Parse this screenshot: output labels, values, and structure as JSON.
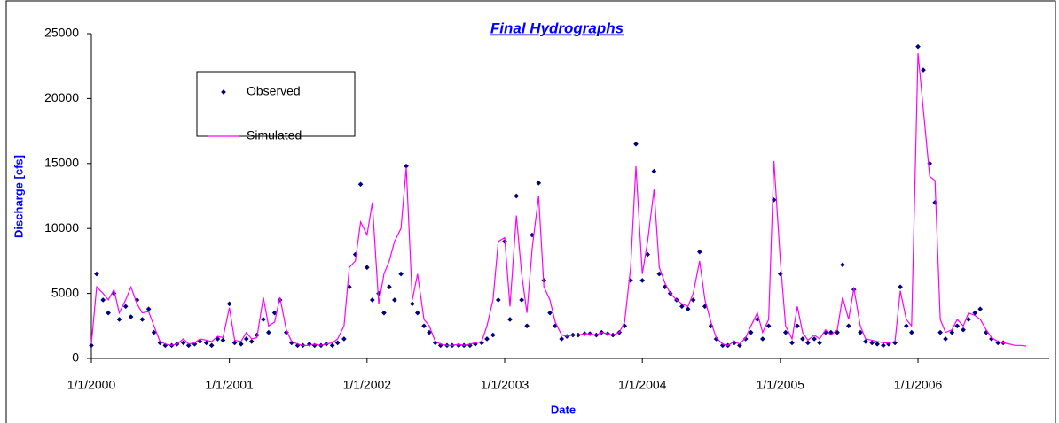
{
  "chart_data": {
    "type": "line",
    "title": "Final Hydrographs",
    "x_label": "Date",
    "y_label": "Discharge [cfs]",
    "legend": "upper left",
    "x": [
      "1/1/2000",
      "1/15/2000",
      "2/1/2000",
      "2/15/2000",
      "3/1/2000",
      "3/15/2000",
      "4/1/2000",
      "4/15/2000",
      "5/1/2000",
      "5/15/2000",
      "6/1/2000",
      "6/15/2000",
      "7/1/2000",
      "7/15/2000",
      "8/1/2000",
      "8/15/2000",
      "9/1/2000",
      "9/15/2000",
      "10/1/2000",
      "10/15/2000",
      "11/1/2000",
      "11/15/2000",
      "12/1/2000",
      "12/15/2000",
      "1/1/2001",
      "1/15/2001",
      "2/1/2001",
      "2/15/2001",
      "3/1/2001",
      "3/15/2001",
      "4/1/2001",
      "4/15/2001",
      "5/1/2001",
      "5/15/2001",
      "6/1/2001",
      "6/15/2001",
      "7/1/2001",
      "7/15/2001",
      "8/1/2001",
      "8/15/2001",
      "9/1/2001",
      "9/15/2001",
      "10/1/2001",
      "10/15/2001",
      "11/1/2001",
      "11/15/2001",
      "12/1/2001",
      "12/15/2001",
      "1/1/2002",
      "1/15/2002",
      "2/1/2002",
      "2/15/2002",
      "3/1/2002",
      "3/15/2002",
      "4/1/2002",
      "4/15/2002",
      "5/1/2002",
      "5/15/2002",
      "6/1/2002",
      "6/15/2002",
      "7/1/2002",
      "7/15/2002",
      "8/1/2002",
      "8/15/2002",
      "9/1/2002",
      "9/15/2002",
      "10/1/2002",
      "10/15/2002",
      "11/1/2002",
      "11/15/2002",
      "12/1/2002",
      "12/15/2002",
      "1/1/2003",
      "1/15/2003",
      "2/1/2003",
      "2/15/2003",
      "3/1/2003",
      "3/15/2003",
      "4/1/2003",
      "4/15/2003",
      "5/1/2003",
      "5/15/2003",
      "6/1/2003",
      "6/15/2003",
      "7/1/2003",
      "7/15/2003",
      "8/1/2003",
      "8/15/2003",
      "9/1/2003",
      "9/15/2003",
      "10/1/2003",
      "10/15/2003",
      "11/1/2003",
      "11/15/2003",
      "12/1/2003",
      "12/15/2003",
      "1/1/2004",
      "1/15/2004",
      "2/1/2004",
      "2/15/2004",
      "3/1/2004",
      "3/15/2004",
      "4/1/2004",
      "4/15/2004",
      "5/1/2004",
      "5/15/2004",
      "6/1/2004",
      "6/15/2004",
      "7/1/2004",
      "7/15/2004",
      "8/1/2004",
      "8/15/2004",
      "9/1/2004",
      "9/15/2004",
      "10/1/2004",
      "10/15/2004",
      "11/1/2004",
      "11/15/2004",
      "12/1/2004",
      "12/15/2004",
      "1/1/2005",
      "1/15/2005",
      "2/1/2005",
      "2/15/2005",
      "3/1/2005",
      "3/15/2005",
      "4/1/2005",
      "4/15/2005",
      "5/1/2005",
      "5/15/2005",
      "6/1/2005",
      "6/15/2005",
      "7/1/2005",
      "7/15/2005",
      "8/1/2005",
      "8/15/2005",
      "9/1/2005",
      "9/15/2005",
      "10/1/2005",
      "10/15/2005",
      "11/1/2005",
      "11/15/2005",
      "12/1/2005",
      "12/15/2005",
      "1/1/2006",
      "1/15/2006",
      "2/1/2006",
      "2/15/2006",
      "3/1/2006",
      "3/15/2006",
      "4/1/2006",
      "4/15/2006",
      "5/1/2006",
      "5/15/2006",
      "6/1/2006",
      "6/15/2006",
      "7/1/2006",
      "7/15/2006",
      "8/1/2006",
      "8/15/2006",
      "9/1/2006",
      "9/15/2006",
      "10/1/2006",
      "10/15/2006"
    ],
    "series": [
      {
        "name": "Observed",
        "mode": "markers",
        "color": "#000080",
        "values": [
          1000,
          6500,
          4500,
          3500,
          5000,
          3000,
          4000,
          3200,
          4500,
          3000,
          3800,
          2000,
          1200,
          1000,
          1000,
          1100,
          1200,
          1000,
          1100,
          1300,
          1200,
          1000,
          1500,
          1400,
          4200,
          1200,
          1100,
          1500,
          1300,
          1800,
          3000,
          2000,
          3500,
          4500,
          2000,
          1200,
          1000,
          1000,
          1100,
          1000,
          1000,
          1100,
          1000,
          1200,
          1500,
          5500,
          8000,
          13400,
          7000,
          4500,
          5000,
          3500,
          5500,
          4500,
          6500,
          14800,
          4200,
          3500,
          2500,
          2000,
          1200,
          1000,
          1000,
          1000,
          1000,
          1000,
          1000,
          1100,
          1200,
          1500,
          1800,
          4500,
          9000,
          3000,
          12500,
          4500,
          2500,
          9500,
          13500,
          6000,
          3500,
          2500,
          1500,
          1700,
          1800,
          1800,
          1900,
          1900,
          1800,
          2000,
          1900,
          1800,
          2000,
          2500,
          6000,
          16500,
          6000,
          8000,
          14400,
          6500,
          5500,
          5000,
          4500,
          4000,
          3800,
          4500,
          8200,
          4000,
          2500,
          1500,
          1000,
          1000,
          1200,
          1000,
          1500,
          2000,
          3000,
          1500,
          2500,
          12200,
          6500,
          2000,
          1200,
          2500,
          1500,
          1200,
          1500,
          1200,
          2000,
          2000,
          2000,
          7200,
          2500,
          5300,
          2000,
          1300,
          1200,
          1100,
          1000,
          1100,
          1200,
          5500,
          2500,
          2000,
          24000,
          22200,
          15000,
          12000,
          2000,
          1500,
          2000,
          2500,
          2200,
          3000,
          3500,
          3800,
          2000,
          1500,
          1200,
          1200,
          null,
          null,
          null,
          null
        ]
      },
      {
        "name": "Simulated",
        "mode": "lines",
        "color": "#ff00ff",
        "values": [
          1100,
          5500,
          5000,
          4500,
          5300,
          3500,
          4500,
          5500,
          4200,
          3500,
          3600,
          2500,
          1300,
          1100,
          1000,
          1100,
          1500,
          1100,
          1200,
          1500,
          1400,
          1300,
          1700,
          1600,
          3900,
          1400,
          1300,
          2000,
          1500,
          1600,
          4700,
          2500,
          2800,
          4700,
          2200,
          1300,
          1100,
          1000,
          1000,
          1100,
          1000,
          1100,
          1200,
          1500,
          2500,
          7000,
          7500,
          10500,
          9500,
          12000,
          4200,
          6500,
          7500,
          9000,
          10000,
          14700,
          4500,
          6500,
          3000,
          2500,
          1300,
          1100,
          1000,
          1000,
          1100,
          1000,
          1100,
          1200,
          1300,
          2500,
          4500,
          9000,
          9300,
          4000,
          11000,
          6500,
          3500,
          8500,
          12500,
          5500,
          4500,
          2800,
          1800,
          1700,
          1800,
          1800,
          1900,
          1900,
          1800,
          2000,
          1900,
          1800,
          2000,
          2800,
          7000,
          14800,
          6500,
          9000,
          13000,
          7000,
          5800,
          5000,
          4500,
          4200,
          4000,
          5000,
          7500,
          4500,
          2800,
          1600,
          1100,
          1000,
          1300,
          1100,
          1600,
          2500,
          3500,
          2000,
          3000,
          15200,
          7500,
          2500,
          1500,
          4000,
          2000,
          1400,
          1800,
          1500,
          2200,
          1800,
          2200,
          4700,
          3000,
          5400,
          2500,
          1500,
          1400,
          1300,
          1200,
          1200,
          1300,
          5200,
          3000,
          2500,
          23500,
          19200,
          14000,
          13700,
          3000,
          2000,
          2200,
          3000,
          2500,
          3500,
          3300,
          3000,
          2200,
          1600,
          1300,
          1200,
          1100,
          1000,
          1000,
          950
        ]
      }
    ],
    "xlim": [
      "1/1/2000",
      "12/15/2006"
    ],
    "xticks": [
      "1/1/2000",
      "1/1/2001",
      "1/1/2002",
      "1/1/2003",
      "1/1/2004",
      "1/1/2005",
      "1/1/2006"
    ],
    "ylim": [
      0,
      25000
    ],
    "yticks": [
      0,
      5000,
      10000,
      15000,
      20000,
      25000
    ]
  }
}
